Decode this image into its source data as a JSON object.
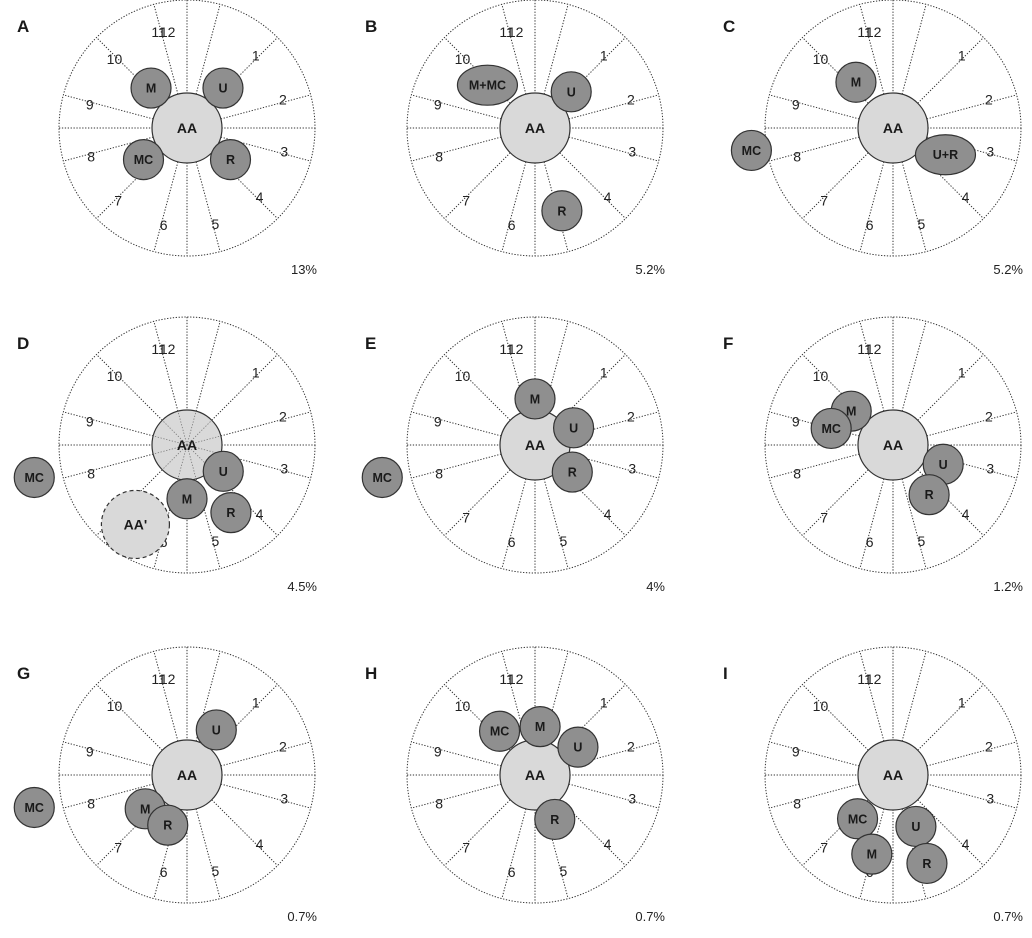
{
  "diagram": {
    "node_fill": "#8f8f8f",
    "aa_fill": "#d9d9d9",
    "hour_labels": [
      "12",
      "1",
      "2",
      "3",
      "4",
      "5",
      "6",
      "7",
      "8",
      "9",
      "10",
      "11"
    ],
    "panels": [
      {
        "letter": "A",
        "percent": "13%",
        "nodes": [
          {
            "label": "AA",
            "kind": "aa",
            "hour": 0,
            "radius": 0
          },
          {
            "label": "M",
            "kind": "node",
            "hour": 10.6,
            "radius": 0.42
          },
          {
            "label": "U",
            "kind": "node",
            "hour": 1.4,
            "radius": 0.42
          },
          {
            "label": "MC",
            "kind": "node",
            "hour": 7.8,
            "radius": 0.42
          },
          {
            "label": "R",
            "kind": "node",
            "hour": 4.2,
            "radius": 0.42
          }
        ]
      },
      {
        "letter": "B",
        "percent": "5.2%",
        "nodes": [
          {
            "label": "AA",
            "kind": "aa",
            "hour": 0,
            "radius": 0
          },
          {
            "label": "M+MC",
            "kind": "node",
            "hour": 10.4,
            "radius": 0.5,
            "wide": true
          },
          {
            "label": "U",
            "kind": "node",
            "hour": 1.5,
            "radius": 0.4
          },
          {
            "label": "R",
            "kind": "node",
            "hour": 5.4,
            "radius": 0.68
          }
        ]
      },
      {
        "letter": "C",
        "percent": "5.2%",
        "nodes": [
          {
            "label": "AA",
            "kind": "aa",
            "hour": 0,
            "radius": 0
          },
          {
            "label": "M",
            "kind": "node",
            "hour": 10.7,
            "radius": 0.46
          },
          {
            "label": "U+R",
            "kind": "node",
            "hour": 3.9,
            "radius": 0.46,
            "wide": true
          },
          {
            "label": "MC",
            "kind": "node",
            "hour": 8.7,
            "radius": 1.12
          }
        ]
      },
      {
        "letter": "D",
        "percent": "4.5%",
        "nodes": [
          {
            "label": "AA",
            "kind": "aa-spoked",
            "hour": 0,
            "radius": 0
          },
          {
            "label": "U",
            "kind": "node",
            "hour": 4.2,
            "radius": 0.35
          },
          {
            "label": "M",
            "kind": "node",
            "hour": 6.0,
            "radius": 0.42
          },
          {
            "label": "R",
            "kind": "node",
            "hour": 4.9,
            "radius": 0.63
          },
          {
            "label": "AA'",
            "kind": "aa-dashed",
            "hour": 7.1,
            "radius": 0.74
          },
          {
            "label": "MC",
            "kind": "node",
            "hour": 8.6,
            "radius": 1.22
          }
        ]
      },
      {
        "letter": "E",
        "percent": "4%",
        "nodes": [
          {
            "label": "AA",
            "kind": "aa",
            "hour": 0,
            "radius": 0
          },
          {
            "label": "M",
            "kind": "node",
            "hour": 0.0,
            "radius": 0.36
          },
          {
            "label": "U",
            "kind": "node",
            "hour": 2.2,
            "radius": 0.33
          },
          {
            "label": "R",
            "kind": "node",
            "hour": 4.2,
            "radius": 0.36
          },
          {
            "label": "MC",
            "kind": "node",
            "hour": 8.6,
            "radius": 1.22
          }
        ]
      },
      {
        "letter": "F",
        "percent": "1.2%",
        "nodes": [
          {
            "label": "AA",
            "kind": "aa",
            "hour": 0,
            "radius": 0
          },
          {
            "label": "M",
            "kind": "node",
            "hour": 10.3,
            "radius": 0.42
          },
          {
            "label": "MC",
            "kind": "node",
            "hour": 9.5,
            "radius": 0.5
          },
          {
            "label": "U",
            "kind": "node",
            "hour": 3.7,
            "radius": 0.42
          },
          {
            "label": "R",
            "kind": "node",
            "hour": 4.8,
            "radius": 0.48
          }
        ]
      },
      {
        "letter": "G",
        "percent": "0.7%",
        "nodes": [
          {
            "label": "AA",
            "kind": "aa",
            "hour": 0,
            "radius": 0
          },
          {
            "label": "U",
            "kind": "node",
            "hour": 1.1,
            "radius": 0.42
          },
          {
            "label": "M",
            "kind": "node",
            "hour": 7.7,
            "radius": 0.42
          },
          {
            "label": "R",
            "kind": "node",
            "hour": 6.7,
            "radius": 0.42
          },
          {
            "label": "MC",
            "kind": "node",
            "hour": 8.6,
            "radius": 1.22
          }
        ]
      },
      {
        "letter": "H",
        "percent": "0.7%",
        "nodes": [
          {
            "label": "AA",
            "kind": "aa",
            "hour": 0,
            "radius": 0
          },
          {
            "label": "M",
            "kind": "node",
            "hour": 0.2,
            "radius": 0.38
          },
          {
            "label": "MC",
            "kind": "node",
            "hour": 10.7,
            "radius": 0.44
          },
          {
            "label": "U",
            "kind": "node",
            "hour": 1.9,
            "radius": 0.4
          },
          {
            "label": "R",
            "kind": "node",
            "hour": 5.2,
            "radius": 0.38
          }
        ]
      },
      {
        "letter": "I",
        "percent": "0.7%",
        "nodes": [
          {
            "label": "AA",
            "kind": "aa",
            "hour": 0,
            "radius": 0
          },
          {
            "label": "MC",
            "kind": "node",
            "hour": 7.3,
            "radius": 0.44
          },
          {
            "label": "M",
            "kind": "node",
            "hour": 6.5,
            "radius": 0.64
          },
          {
            "label": "U",
            "kind": "node",
            "hour": 5.2,
            "radius": 0.44
          },
          {
            "label": "R",
            "kind": "node",
            "hour": 5.3,
            "radius": 0.74
          }
        ]
      }
    ]
  }
}
